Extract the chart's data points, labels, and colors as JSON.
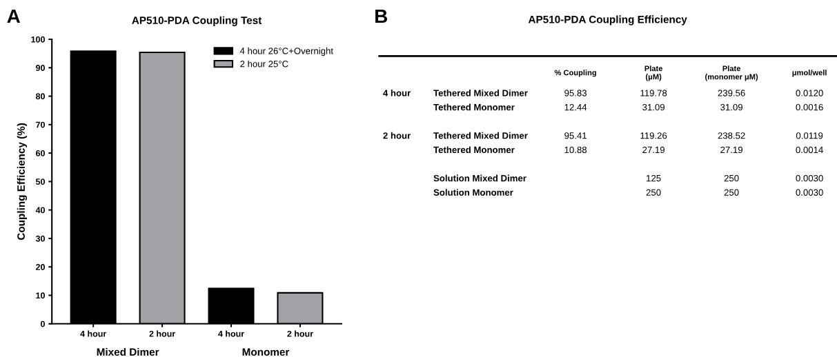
{
  "chart_data": [
    {
      "type": "bar",
      "title": "AP510-PDA Coupling Test",
      "ylabel": "Coupling Efficiency (%)",
      "categories": [
        "4 hour",
        "2 hour",
        "4 hour",
        "2 hour"
      ],
      "series": [
        {
          "name": "4 hour 26°C+Overnight",
          "color": "#000000",
          "values": [
            95.83,
            null,
            12.44,
            null
          ]
        },
        {
          "name": "2 hour 25°C",
          "color": "#a2a2a6",
          "values": [
            null,
            95.41,
            null,
            10.88
          ]
        }
      ],
      "ylim": [
        0,
        100
      ],
      "yticks": [
        0,
        10,
        20,
        30,
        40,
        50,
        60,
        70,
        80,
        90,
        100
      ],
      "grid": false,
      "legend": "top right",
      "annotations": [
        "A",
        "Mixed Dimer",
        "Monomer"
      ]
    },
    {
      "type": "other",
      "title": "AP510-PDA Coupling Efficiency",
      "categories": [
        "% Coupling",
        "Plate\n(μM)",
        "Plate\n(monomer μM)",
        "μmol/well"
      ],
      "y2_categories": [
        "4 hour",
        null,
        null,
        "2 hour",
        null,
        null,
        null,
        null
      ],
      "y_categories": [
        "Tethered Mixed Dimer",
        "Tethered Monomer",
        null,
        "Tethered Mixed Dimer",
        "Tethered Monomer",
        null,
        "Solution Mixed Dimer",
        "Solution Monomer"
      ],
      "cell_labels": [
        [
          "95.83",
          "119.78",
          "239.56",
          "0.0120"
        ],
        [
          "12.44",
          "31.09",
          "31.09",
          "0.0016"
        ],
        [
          null,
          null,
          null,
          null
        ],
        [
          "95.41",
          "119.26",
          "238.52",
          "0.0119"
        ],
        [
          "10.88",
          "27.19",
          "27.19",
          "0.0014"
        ],
        [
          null,
          null,
          null,
          null
        ],
        [
          null,
          "125",
          "250",
          "0.0030"
        ],
        [
          null,
          "250",
          "250",
          "0.0030"
        ]
      ],
      "annotations": [
        "B"
      ]
    }
  ]
}
